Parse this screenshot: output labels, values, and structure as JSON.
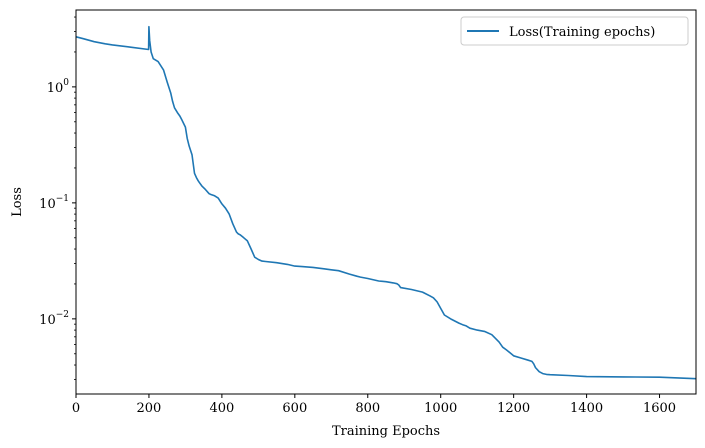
{
  "chart_data": {
    "type": "line",
    "title": "",
    "xlabel": "Training Epochs",
    "ylabel": "Loss",
    "xlim": [
      0,
      1700
    ],
    "ylim": [
      0.00225,
      4.6
    ],
    "yscale": "log",
    "xticks": [
      0,
      200,
      400,
      600,
      800,
      1000,
      1200,
      1400,
      1600
    ],
    "yticks": [
      {
        "value": 1,
        "base": "10",
        "exp": "0"
      },
      {
        "value": 0.1,
        "base": "10",
        "exp": "−1"
      },
      {
        "value": 0.01,
        "base": "10",
        "exp": "−2"
      }
    ],
    "grid": false,
    "legend": {
      "position": "top-right"
    },
    "series": [
      {
        "name": "Loss(Training epochs)",
        "color": "#1f77b4",
        "x": [
          0,
          20,
          50,
          80,
          100,
          150,
          199,
          200,
          202,
          206,
          212,
          225,
          240,
          250,
          260,
          265,
          270,
          278,
          285,
          290,
          300,
          305,
          310,
          318,
          325,
          330,
          335,
          338,
          345,
          355,
          365,
          370,
          380,
          390,
          400,
          410,
          420,
          430,
          440,
          445,
          450,
          460,
          470,
          480,
          490,
          500,
          510,
          520,
          550,
          580,
          600,
          620,
          650,
          680,
          700,
          720,
          750,
          770,
          780,
          800,
          830,
          850,
          870,
          880,
          885,
          890,
          920,
          950,
          970,
          980,
          990,
          1000,
          1010,
          1030,
          1050,
          1060,
          1070,
          1080,
          1100,
          1120,
          1140,
          1150,
          1160,
          1170,
          1180,
          1190,
          1200,
          1220,
          1240,
          1250,
          1255,
          1260,
          1270,
          1280,
          1290,
          1300,
          1350,
          1400,
          1500,
          1600,
          1650,
          1700
        ],
        "values": [
          2.7,
          2.6,
          2.45,
          2.35,
          2.3,
          2.2,
          2.1,
          3.3,
          2.5,
          2.0,
          1.75,
          1.65,
          1.4,
          1.1,
          0.88,
          0.75,
          0.66,
          0.6,
          0.56,
          0.52,
          0.45,
          0.36,
          0.31,
          0.26,
          0.18,
          0.165,
          0.155,
          0.15,
          0.14,
          0.13,
          0.12,
          0.118,
          0.115,
          0.11,
          0.098,
          0.09,
          0.08,
          0.066,
          0.056,
          0.054,
          0.053,
          0.05,
          0.047,
          0.04,
          0.034,
          0.0325,
          0.0315,
          0.0312,
          0.0305,
          0.0295,
          0.0285,
          0.0282,
          0.0278,
          0.027,
          0.0265,
          0.026,
          0.0243,
          0.0233,
          0.0229,
          0.0223,
          0.0212,
          0.0209,
          0.0204,
          0.0201,
          0.0196,
          0.0186,
          0.0179,
          0.017,
          0.0158,
          0.0152,
          0.014,
          0.0123,
          0.0108,
          0.0099,
          0.0092,
          0.0089,
          0.0087,
          0.0083,
          0.008,
          0.0078,
          0.0073,
          0.0068,
          0.0063,
          0.0057,
          0.0054,
          0.0051,
          0.0048,
          0.0046,
          0.0044,
          0.0043,
          0.0041,
          0.0038,
          0.0035,
          0.00337,
          0.00332,
          0.0033,
          0.00325,
          0.00318,
          0.00316,
          0.00314,
          0.0031,
          0.00305
        ]
      }
    ]
  }
}
